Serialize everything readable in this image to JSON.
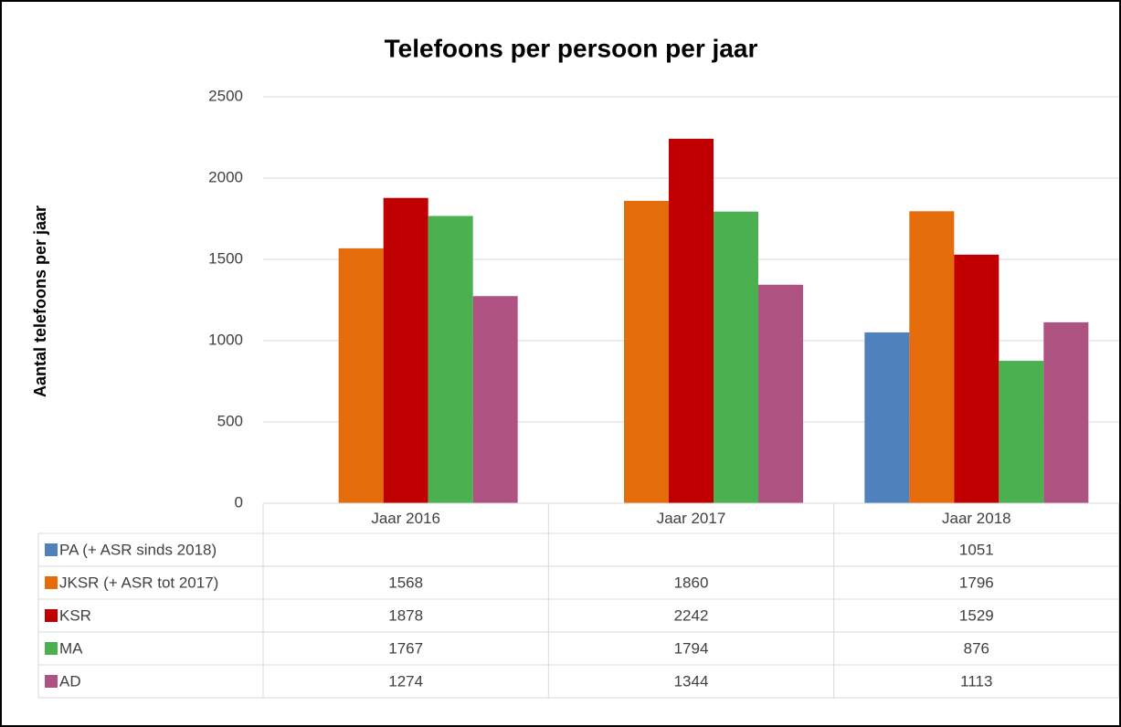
{
  "chart_data": {
    "type": "bar",
    "title": "Telefoons per persoon per jaar",
    "y_label": "Aantal telefoons per jaar",
    "categories": [
      "Jaar 2016",
      "Jaar 2017",
      "Jaar 2018"
    ],
    "series": [
      {
        "name": "PA (+ ASR sinds 2018)",
        "color": "#4f81bd",
        "values": [
          null,
          null,
          1051
        ]
      },
      {
        "name": "JKSR (+ ASR tot 2017)",
        "color": "#e46c0a",
        "values": [
          1568,
          1860,
          1796
        ]
      },
      {
        "name": "KSR",
        "color": "#c00000",
        "values": [
          1878,
          2242,
          1529
        ]
      },
      {
        "name": "MA",
        "color": "#4bb050",
        "values": [
          1767,
          1794,
          876
        ]
      },
      {
        "name": "AD",
        "color": "#ae5282",
        "values": [
          1274,
          1344,
          1113
        ]
      }
    ],
    "ylim": [
      0,
      2500
    ],
    "yticks": [
      0,
      500,
      1000,
      1500,
      2000,
      2500
    ],
    "grid": true,
    "data_table": true
  }
}
